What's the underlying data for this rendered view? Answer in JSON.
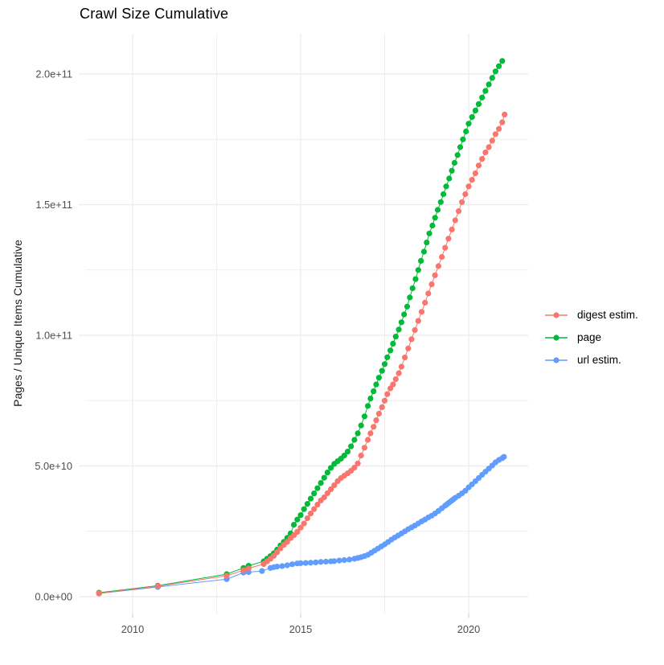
{
  "title": "Crawl Size Cumulative",
  "colors": {
    "grid": "#ebebeb",
    "tick": "#d4d4d4",
    "axis_text": "#4d4d4d"
  },
  "chart_data": {
    "type": "scatter",
    "title": "Crawl Size Cumulative",
    "xlabel": "",
    "ylabel": "Pages / Unique Items Cumulative",
    "legend_position": "right",
    "grid": true,
    "xlim": [
      2008.7,
      2021.8
    ],
    "ylim_billions": [
      0,
      215
    ],
    "x_ticks": [
      2010,
      2015,
      2020
    ],
    "x_tick_labels": [
      "2010",
      "2015",
      "2020"
    ],
    "x_minor_ticks": [
      2012.5,
      2017.5
    ],
    "y_ticks_billions": [
      0,
      50,
      100,
      150,
      200
    ],
    "y_tick_labels": [
      "0.0e+00",
      "5.0e+10",
      "1.0e+11",
      "1.5e+11",
      "2.0e+11"
    ],
    "y_minor_ticks_billions": [
      25,
      75,
      125,
      175
    ],
    "value_unit": "billions (1e9)",
    "series": [
      {
        "name": "digest estim.",
        "color": "#F8766D",
        "points": [
          [
            2009.0,
            1.3
          ],
          [
            2010.75,
            4.0
          ],
          [
            2012.8,
            8.0
          ],
          [
            2013.3,
            10.1
          ],
          [
            2013.45,
            10.8
          ],
          [
            2013.9,
            12.5
          ],
          [
            2014.0,
            13.5
          ],
          [
            2014.1,
            14.5
          ],
          [
            2014.2,
            15.6
          ],
          [
            2014.3,
            17.0
          ],
          [
            2014.4,
            18.5
          ],
          [
            2014.5,
            19.8
          ],
          [
            2014.6,
            21.0
          ],
          [
            2014.7,
            22.4
          ],
          [
            2014.8,
            23.5
          ],
          [
            2014.9,
            24.8
          ],
          [
            2015.0,
            26.4
          ],
          [
            2015.1,
            28.0
          ],
          [
            2015.2,
            30.0
          ],
          [
            2015.3,
            31.8
          ],
          [
            2015.4,
            33.5
          ],
          [
            2015.5,
            35.2
          ],
          [
            2015.6,
            36.8
          ],
          [
            2015.7,
            38.0
          ],
          [
            2015.8,
            39.6
          ],
          [
            2015.9,
            41.1
          ],
          [
            2016.0,
            42.6
          ],
          [
            2016.1,
            44.2
          ],
          [
            2016.2,
            45.4
          ],
          [
            2016.3,
            46.3
          ],
          [
            2016.4,
            47.2
          ],
          [
            2016.5,
            48.2
          ],
          [
            2016.6,
            49.4
          ],
          [
            2016.7,
            51.0
          ],
          [
            2016.8,
            54.0
          ],
          [
            2016.9,
            57.0
          ],
          [
            2017.0,
            60.0
          ],
          [
            2017.08,
            62.5
          ],
          [
            2017.17,
            65.0
          ],
          [
            2017.25,
            67.5
          ],
          [
            2017.33,
            70.0
          ],
          [
            2017.42,
            72.5
          ],
          [
            2017.5,
            75.0
          ],
          [
            2017.58,
            77.5
          ],
          [
            2017.67,
            79.7
          ],
          [
            2017.75,
            81.2
          ],
          [
            2017.83,
            83.2
          ],
          [
            2017.92,
            85.5
          ],
          [
            2018.0,
            88.0
          ],
          [
            2018.1,
            91.5
          ],
          [
            2018.2,
            95.0
          ],
          [
            2018.3,
            98.5
          ],
          [
            2018.4,
            102.0
          ],
          [
            2018.5,
            105.5
          ],
          [
            2018.6,
            109.0
          ],
          [
            2018.7,
            112.5
          ],
          [
            2018.8,
            116.0
          ],
          [
            2018.9,
            119.5
          ],
          [
            2019.0,
            123.0
          ],
          [
            2019.1,
            126.5
          ],
          [
            2019.2,
            130.0
          ],
          [
            2019.3,
            133.5
          ],
          [
            2019.4,
            137.0
          ],
          [
            2019.5,
            140.5
          ],
          [
            2019.6,
            144.0
          ],
          [
            2019.7,
            147.5
          ],
          [
            2019.8,
            151.0
          ],
          [
            2019.9,
            154.0
          ],
          [
            2020.0,
            157.0
          ],
          [
            2020.1,
            159.5
          ],
          [
            2020.2,
            162.0
          ],
          [
            2020.3,
            165.0
          ],
          [
            2020.4,
            167.5
          ],
          [
            2020.5,
            170.0
          ],
          [
            2020.6,
            172.0
          ],
          [
            2020.7,
            174.5
          ],
          [
            2020.8,
            177.0
          ],
          [
            2020.9,
            179.0
          ],
          [
            2021.0,
            181.5
          ],
          [
            2021.07,
            184.5
          ]
        ]
      },
      {
        "name": "page",
        "color": "#00BA38",
        "points": [
          [
            2009.0,
            1.5
          ],
          [
            2010.75,
            4.2
          ],
          [
            2012.8,
            8.6
          ],
          [
            2013.3,
            11.0
          ],
          [
            2013.45,
            11.8
          ],
          [
            2013.9,
            13.5
          ],
          [
            2014.0,
            14.5
          ],
          [
            2014.1,
            15.5
          ],
          [
            2014.2,
            16.6
          ],
          [
            2014.3,
            18.0
          ],
          [
            2014.4,
            19.6
          ],
          [
            2014.5,
            21.0
          ],
          [
            2014.6,
            22.5
          ],
          [
            2014.7,
            24.2
          ],
          [
            2014.8,
            27.5
          ],
          [
            2014.9,
            29.5
          ],
          [
            2015.0,
            31.2
          ],
          [
            2015.1,
            33.5
          ],
          [
            2015.2,
            35.5
          ],
          [
            2015.3,
            37.5
          ],
          [
            2015.4,
            39.5
          ],
          [
            2015.5,
            41.5
          ],
          [
            2015.6,
            43.5
          ],
          [
            2015.7,
            45.5
          ],
          [
            2015.8,
            47.5
          ],
          [
            2015.9,
            49.3
          ],
          [
            2016.0,
            50.8
          ],
          [
            2016.1,
            51.8
          ],
          [
            2016.2,
            52.8
          ],
          [
            2016.3,
            54.0
          ],
          [
            2016.4,
            55.5
          ],
          [
            2016.5,
            57.5
          ],
          [
            2016.6,
            60.0
          ],
          [
            2016.7,
            62.5
          ],
          [
            2016.8,
            65.5
          ],
          [
            2016.9,
            69.0
          ],
          [
            2017.0,
            73.0
          ],
          [
            2017.08,
            75.8
          ],
          [
            2017.17,
            78.6
          ],
          [
            2017.25,
            81.2
          ],
          [
            2017.33,
            83.8
          ],
          [
            2017.42,
            86.4
          ],
          [
            2017.5,
            89.0
          ],
          [
            2017.58,
            91.6
          ],
          [
            2017.67,
            94.2
          ],
          [
            2017.75,
            96.8
          ],
          [
            2017.83,
            99.5
          ],
          [
            2017.92,
            102.2
          ],
          [
            2018.0,
            105.0
          ],
          [
            2018.08,
            108.0
          ],
          [
            2018.17,
            111.0
          ],
          [
            2018.25,
            114.5
          ],
          [
            2018.33,
            118.0
          ],
          [
            2018.42,
            121.5
          ],
          [
            2018.5,
            125.0
          ],
          [
            2018.58,
            128.5
          ],
          [
            2018.67,
            132.0
          ],
          [
            2018.75,
            135.5
          ],
          [
            2018.83,
            139.0
          ],
          [
            2018.92,
            142.0
          ],
          [
            2019.0,
            145.0
          ],
          [
            2019.08,
            148.0
          ],
          [
            2019.17,
            151.0
          ],
          [
            2019.25,
            154.0
          ],
          [
            2019.33,
            157.0
          ],
          [
            2019.42,
            160.0
          ],
          [
            2019.5,
            163.0
          ],
          [
            2019.58,
            166.0
          ],
          [
            2019.67,
            169.0
          ],
          [
            2019.75,
            172.0
          ],
          [
            2019.83,
            175.0
          ],
          [
            2019.92,
            178.0
          ],
          [
            2020.0,
            181.0
          ],
          [
            2020.1,
            183.5
          ],
          [
            2020.2,
            186.0
          ],
          [
            2020.3,
            188.5
          ],
          [
            2020.4,
            191.0
          ],
          [
            2020.5,
            193.5
          ],
          [
            2020.6,
            196.0
          ],
          [
            2020.7,
            198.5
          ],
          [
            2020.8,
            201.0
          ],
          [
            2020.9,
            203.0
          ],
          [
            2021.0,
            205.0
          ]
        ]
      },
      {
        "name": "url estim.",
        "color": "#619CFF",
        "points": [
          [
            2009.0,
            1.2
          ],
          [
            2010.75,
            3.7
          ],
          [
            2012.8,
            6.7
          ],
          [
            2013.3,
            9.2
          ],
          [
            2013.45,
            9.4
          ],
          [
            2013.85,
            9.8
          ],
          [
            2014.1,
            11.0
          ],
          [
            2014.2,
            11.3
          ],
          [
            2014.3,
            11.5
          ],
          [
            2014.45,
            11.7
          ],
          [
            2014.6,
            12.0
          ],
          [
            2014.75,
            12.4
          ],
          [
            2014.9,
            12.7
          ],
          [
            2015.0,
            12.8
          ],
          [
            2015.15,
            12.9
          ],
          [
            2015.3,
            13.0
          ],
          [
            2015.45,
            13.1
          ],
          [
            2015.6,
            13.3
          ],
          [
            2015.75,
            13.4
          ],
          [
            2015.9,
            13.5
          ],
          [
            2016.0,
            13.6
          ],
          [
            2016.15,
            13.8
          ],
          [
            2016.3,
            14.0
          ],
          [
            2016.45,
            14.2
          ],
          [
            2016.6,
            14.5
          ],
          [
            2016.7,
            14.8
          ],
          [
            2016.8,
            15.1
          ],
          [
            2016.9,
            15.5
          ],
          [
            2017.0,
            16.0
          ],
          [
            2017.1,
            16.8
          ],
          [
            2017.2,
            17.6
          ],
          [
            2017.3,
            18.4
          ],
          [
            2017.4,
            19.2
          ],
          [
            2017.5,
            20.0
          ],
          [
            2017.6,
            20.9
          ],
          [
            2017.7,
            21.8
          ],
          [
            2017.8,
            22.6
          ],
          [
            2017.9,
            23.4
          ],
          [
            2018.0,
            24.2
          ],
          [
            2018.1,
            25.0
          ],
          [
            2018.2,
            25.8
          ],
          [
            2018.3,
            26.5
          ],
          [
            2018.4,
            27.2
          ],
          [
            2018.5,
            28.0
          ],
          [
            2018.6,
            28.8
          ],
          [
            2018.7,
            29.5
          ],
          [
            2018.8,
            30.3
          ],
          [
            2018.9,
            31.0
          ],
          [
            2019.0,
            31.8
          ],
          [
            2019.1,
            32.8
          ],
          [
            2019.2,
            33.8
          ],
          [
            2019.3,
            34.8
          ],
          [
            2019.35,
            35.3
          ],
          [
            2019.4,
            35.8
          ],
          [
            2019.45,
            36.3
          ],
          [
            2019.5,
            36.8
          ],
          [
            2019.55,
            37.3
          ],
          [
            2019.6,
            37.8
          ],
          [
            2019.7,
            38.6
          ],
          [
            2019.8,
            39.5
          ],
          [
            2019.9,
            40.5
          ],
          [
            2020.0,
            41.8
          ],
          [
            2020.1,
            43.0
          ],
          [
            2020.2,
            44.2
          ],
          [
            2020.3,
            45.4
          ],
          [
            2020.4,
            46.6
          ],
          [
            2020.5,
            47.8
          ],
          [
            2020.6,
            49.0
          ],
          [
            2020.7,
            50.2
          ],
          [
            2020.8,
            51.4
          ],
          [
            2020.9,
            52.3
          ],
          [
            2021.0,
            53.0
          ],
          [
            2021.05,
            53.5
          ]
        ]
      }
    ]
  }
}
